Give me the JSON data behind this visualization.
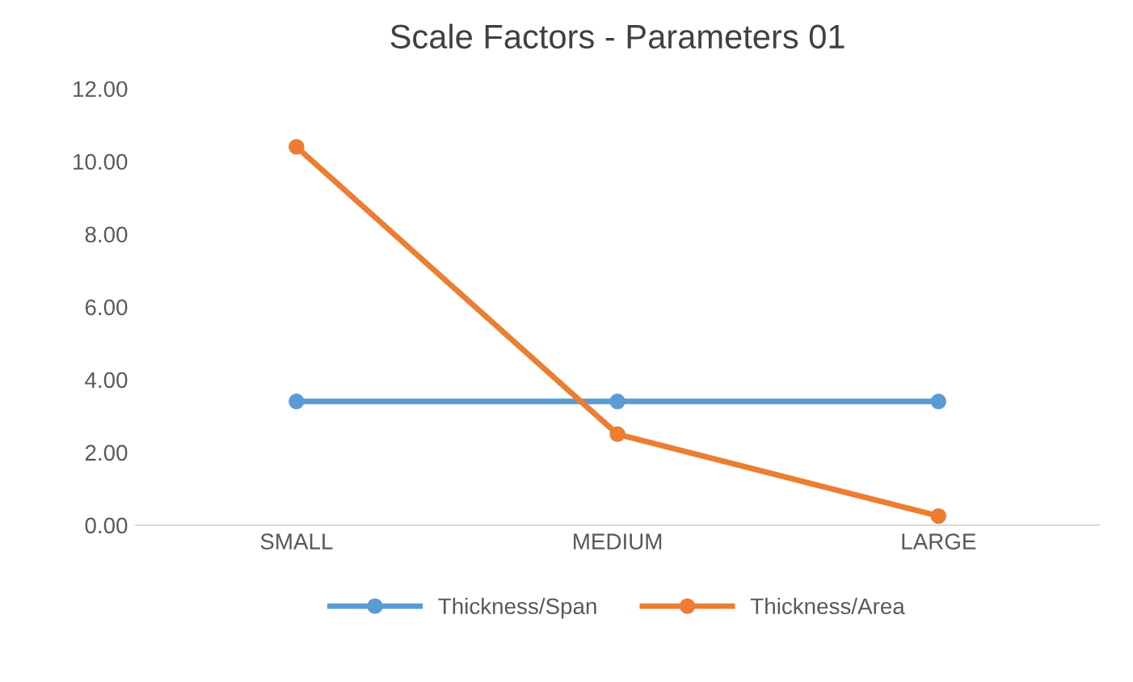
{
  "chart_data": {
    "type": "line",
    "title": "Scale Factors - Parameters 01",
    "categories": [
      "SMALL",
      "MEDIUM",
      "LARGE"
    ],
    "series": [
      {
        "name": "Thickness/Span",
        "color": "#5b9bd5",
        "values": [
          3.4,
          3.4,
          3.4
        ]
      },
      {
        "name": "Thickness/Area",
        "color": "#ed7d31",
        "values": [
          10.4,
          2.5,
          0.25
        ]
      }
    ],
    "ylim": [
      0,
      12
    ],
    "yticks": [
      {
        "value": 0,
        "label": "0.00"
      },
      {
        "value": 2,
        "label": "2.00"
      },
      {
        "value": 4,
        "label": "4.00"
      },
      {
        "value": 6,
        "label": "6.00"
      },
      {
        "value": 8,
        "label": "8.00"
      },
      {
        "value": 10,
        "label": "10.00"
      },
      {
        "value": 12,
        "label": "12.00"
      }
    ],
    "grid": false,
    "legend": "bottom",
    "marker": "circle",
    "line_style": "solid"
  }
}
